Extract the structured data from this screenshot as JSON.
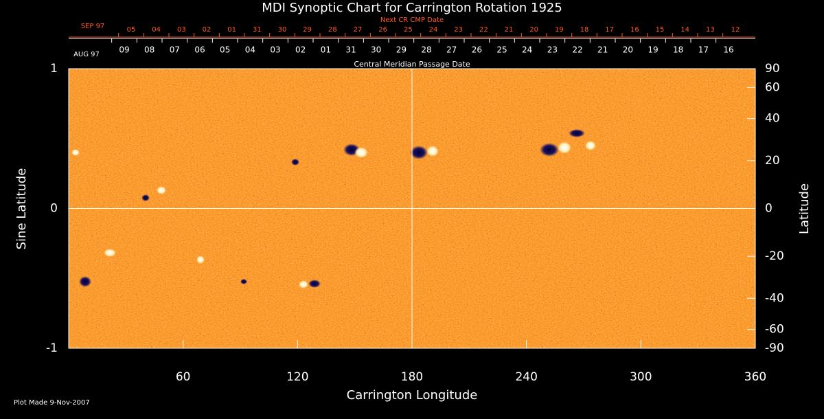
{
  "chart_data": {
    "type": "synoptic-map",
    "title": "MDI Synoptic Chart for Carrington Rotation 1925",
    "xlabel": "Carrington Longitude",
    "ylabel": "Sine Latitude",
    "y2label": "Latitude",
    "footer": "Plot Made  9-Nov-2007",
    "xlim": [
      0,
      360
    ],
    "xticks": [
      60,
      120,
      180,
      240,
      300,
      360
    ],
    "ylim": [
      -1,
      1
    ],
    "yticks": [
      -1,
      0,
      1
    ],
    "y2lim": [
      -90,
      90
    ],
    "y2scale": "sine",
    "y2ticks": [
      90,
      60,
      40,
      20,
      0,
      -20,
      -40,
      -60,
      -90
    ],
    "center_lines": {
      "x": 180,
      "y": 0
    },
    "cmp_dates": {
      "label": "Central Meridian Passage Date",
      "start": "AUG 97",
      "color": "#ffffff",
      "dates": [
        "09",
        "08",
        "07",
        "06",
        "05",
        "04",
        "03",
        "02",
        "01",
        "31",
        "30",
        "29",
        "28",
        "27",
        "26",
        "25",
        "24",
        "23",
        "22",
        "21",
        "20",
        "19",
        "18",
        "17",
        "16"
      ]
    },
    "next_cmp_dates": {
      "label": "Next CR CMP Date",
      "start": "SEP 97",
      "color": "#ff5a1e",
      "dates": [
        "05",
        "04",
        "03",
        "02",
        "01",
        "31",
        "30",
        "29",
        "28",
        "27",
        "26",
        "25",
        "24",
        "23",
        "22",
        "21",
        "20",
        "19",
        "18",
        "17",
        "16",
        "15",
        "14",
        "13",
        "12"
      ]
    }
  }
}
